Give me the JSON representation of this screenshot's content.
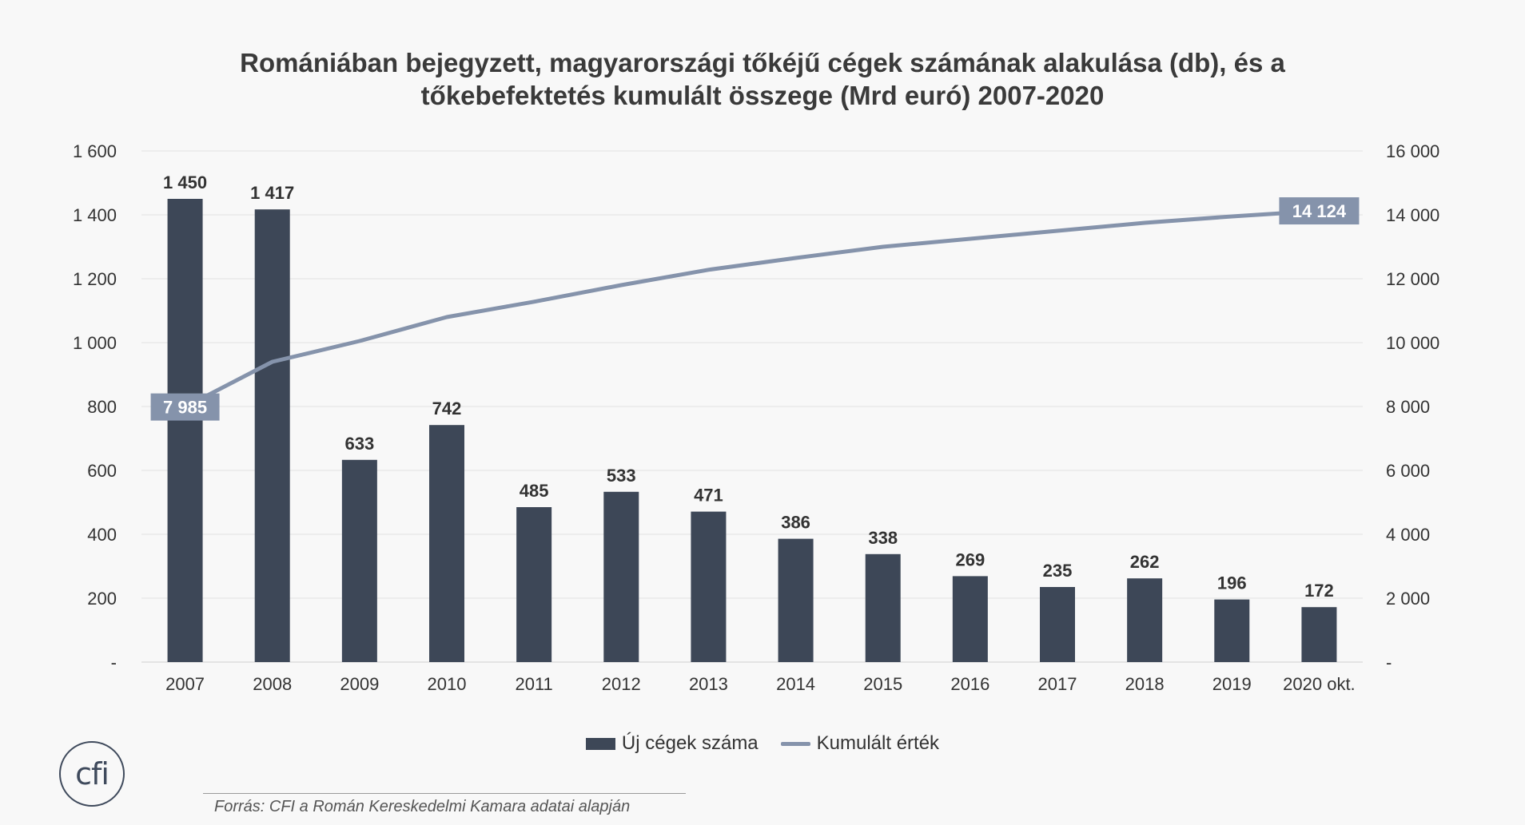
{
  "title_line1": "Romániában bejegyzett, magyarországi tőkéjű cégek számának alakulása (db), és a",
  "title_line2": "tőkebefektetés kumulált összege (Mrd euró) 2007-2020",
  "source": "Forrás: CFI a Román Kereskedelmi Kamara adatai alapján",
  "logo_text": "cfi",
  "colors": {
    "bar": "#3d4757",
    "line": "#8593ab",
    "grid": "#e2e2e2"
  },
  "chart_data": {
    "type": "bar",
    "categories": [
      "2007",
      "2008",
      "2009",
      "2010",
      "2011",
      "2012",
      "2013",
      "2014",
      "2015",
      "2016",
      "2017",
      "2018",
      "2019",
      "2020 okt."
    ],
    "series": [
      {
        "name": "Új cégek száma",
        "type": "bar",
        "axis": "left",
        "values": [
          1450,
          1417,
          633,
          742,
          485,
          533,
          471,
          386,
          338,
          269,
          235,
          262,
          196,
          172
        ],
        "labels": [
          "1 450",
          "1 417",
          "633",
          "742",
          "485",
          "533",
          "471",
          "386",
          "338",
          "269",
          "235",
          "262",
          "196",
          "172"
        ]
      },
      {
        "name": "Kumulált érték",
        "type": "line",
        "axis": "right",
        "values": [
          7985,
          9400,
          10050,
          10800,
          11280,
          11800,
          12280,
          12650,
          13000,
          13250,
          13500,
          13750,
          13950,
          14124
        ],
        "labeled_points": [
          {
            "index": 0,
            "label": "7 985"
          },
          {
            "index": 13,
            "label": "14 124"
          }
        ]
      }
    ],
    "y_left": {
      "lim": [
        0,
        1600
      ],
      "ticks": [
        0,
        200,
        400,
        600,
        800,
        1000,
        1200,
        1400,
        1600
      ],
      "tick_labels": [
        "-",
        "200",
        "400",
        "600",
        "800",
        "1 000",
        "1 200",
        "1 400",
        "1 600"
      ]
    },
    "y_right": {
      "lim": [
        0,
        16000
      ],
      "ticks": [
        0,
        2000,
        4000,
        6000,
        8000,
        10000,
        12000,
        14000,
        16000
      ],
      "tick_labels": [
        "-",
        "2 000",
        "4 000",
        "6 000",
        "8 000",
        "10 000",
        "12 000",
        "14 000",
        "16 000"
      ]
    },
    "grid": true,
    "legend": "bottom-center"
  }
}
